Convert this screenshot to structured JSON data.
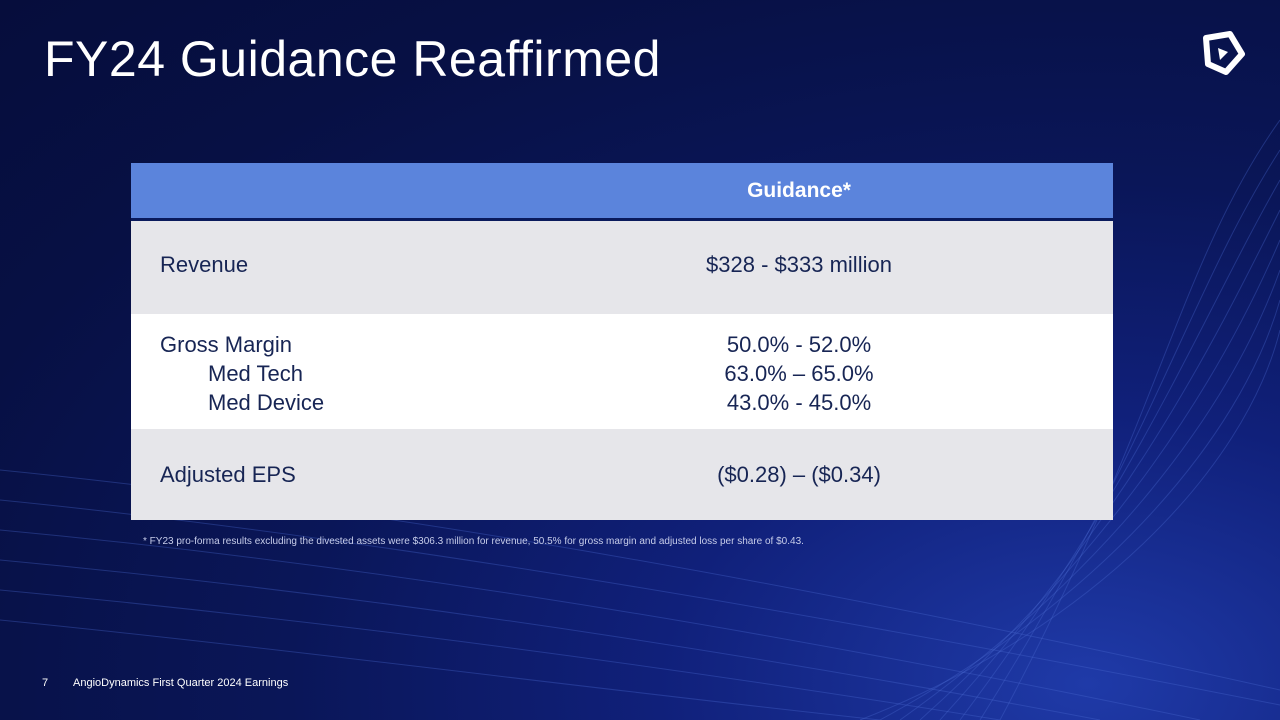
{
  "slide": {
    "title": "FY24 Guidance Reaffirmed",
    "logo_icon": "angiodynamics-logo-icon"
  },
  "table": {
    "header": "Guidance*",
    "rows": [
      {
        "label": "Revenue",
        "value": "$328 - $333 million"
      },
      {
        "label": "Gross Margin",
        "value": "50.0% - 52.0%",
        "sub_rows": [
          {
            "label": "Med Tech",
            "value": "63.0% – 65.0%"
          },
          {
            "label": "Med Device",
            "value": "43.0% - 45.0%"
          }
        ]
      },
      {
        "label": "Adjusted EPS",
        "value": "($0.28) – ($0.34)"
      }
    ]
  },
  "footnote": "* FY23 pro-forma results excluding the divested assets were $306.3 million for revenue, 50.5% for gross margin and adjusted loss per share of $0.43.",
  "footer": {
    "page_number": "7",
    "text": "AngioDynamics First Quarter 2024 Earnings"
  },
  "colors": {
    "background": "#071044",
    "header_fill": "#5b84dc",
    "row_shade": "#e6e6ea",
    "row_text": "#172554"
  }
}
